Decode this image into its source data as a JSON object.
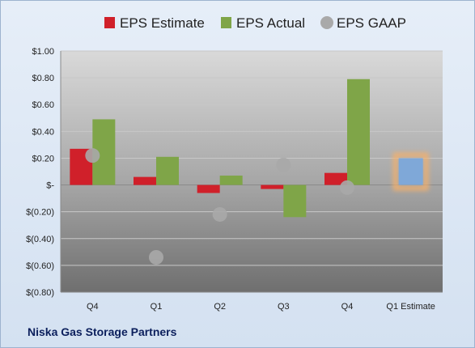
{
  "footer": {
    "company": "Niska Gas Storage Partners"
  },
  "colors": {
    "estimate": "#d0202a",
    "actual": "#7fa548",
    "gaap": "#a9a9a9",
    "next_estimate": "#7fa8d8",
    "next_estimate_glow": "#f5b06a"
  },
  "chart_data": {
    "type": "bar",
    "categories": [
      "Q4",
      "Q1",
      "Q2",
      "Q3",
      "Q4",
      "Q1 Estimate"
    ],
    "series": [
      {
        "name": "EPS Estimate",
        "values": [
          0.27,
          0.06,
          -0.06,
          -0.03,
          0.09,
          null
        ]
      },
      {
        "name": "EPS Actual",
        "values": [
          0.49,
          0.21,
          0.07,
          -0.24,
          0.79,
          null
        ]
      },
      {
        "name": "EPS GAAP",
        "values": [
          0.22,
          -0.54,
          -0.22,
          0.15,
          -0.02,
          null
        ]
      }
    ],
    "next_estimate": {
      "category": "Q1 Estimate",
      "value": 0.2
    },
    "y_ticks": [
      1.0,
      0.8,
      0.6,
      0.4,
      0.2,
      0,
      -0.2,
      -0.4,
      -0.6,
      -0.8
    ],
    "y_tick_labels": [
      "$1.00",
      "$0.80",
      "$0.60",
      "$0.40",
      "$0.20",
      "$-",
      "$(0.20)",
      "$(0.40)",
      "$(0.60)",
      "$(0.80)"
    ],
    "ylim": [
      -0.8,
      1.0
    ],
    "legend_position": "top",
    "grid": true
  }
}
